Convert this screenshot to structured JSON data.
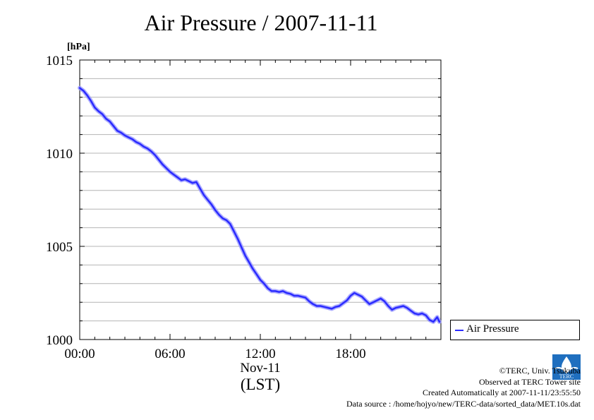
{
  "chart_data": {
    "type": "line",
    "title": "Air Pressure / 2007-11-11",
    "ylabel": "[hPa]",
    "ylim": [
      1000,
      1015
    ],
    "yticks": [
      1000,
      1005,
      1010,
      1015
    ],
    "xlim": [
      0,
      24
    ],
    "xticks": [
      {
        "value": 0,
        "label": "00:00"
      },
      {
        "value": 6,
        "label": "06:00"
      },
      {
        "value": 12,
        "label": "12:00"
      },
      {
        "value": 18,
        "label": "18:00"
      }
    ],
    "xlabel_date": "Nov-11",
    "xlabel": "(LST)",
    "grid": "horizontal, every 1 hPa",
    "legend_position": "right",
    "series": [
      {
        "name": "Air Pressure",
        "color": "#2b2bff",
        "x": [
          0.0,
          0.25,
          0.5,
          0.75,
          1.0,
          1.25,
          1.5,
          1.75,
          2.0,
          2.25,
          2.5,
          2.75,
          3.0,
          3.25,
          3.5,
          3.75,
          4.0,
          4.25,
          4.5,
          4.75,
          5.0,
          5.25,
          5.5,
          5.75,
          6.0,
          6.25,
          6.5,
          6.75,
          7.0,
          7.25,
          7.5,
          7.75,
          8.0,
          8.25,
          8.5,
          8.75,
          9.0,
          9.25,
          9.5,
          9.75,
          10.0,
          10.25,
          10.5,
          10.75,
          11.0,
          11.25,
          11.5,
          11.75,
          12.0,
          12.25,
          12.5,
          12.75,
          13.0,
          13.25,
          13.5,
          13.75,
          14.0,
          14.25,
          14.5,
          14.75,
          15.0,
          15.25,
          15.5,
          15.75,
          16.0,
          16.25,
          16.5,
          16.75,
          17.0,
          17.25,
          17.5,
          17.75,
          18.0,
          18.25,
          18.5,
          18.75,
          19.0,
          19.25,
          19.5,
          19.75,
          20.0,
          20.25,
          20.5,
          20.75,
          21.0,
          21.25,
          21.5,
          21.75,
          22.0,
          22.25,
          22.5,
          22.75,
          23.0,
          23.25,
          23.5,
          23.75,
          23.9
        ],
        "values": [
          1013.5,
          1013.35,
          1013.1,
          1012.8,
          1012.45,
          1012.25,
          1012.1,
          1011.85,
          1011.7,
          1011.45,
          1011.2,
          1011.1,
          1010.95,
          1010.85,
          1010.75,
          1010.6,
          1010.5,
          1010.35,
          1010.25,
          1010.1,
          1009.9,
          1009.65,
          1009.4,
          1009.2,
          1009.0,
          1008.85,
          1008.7,
          1008.55,
          1008.6,
          1008.5,
          1008.4,
          1008.45,
          1008.1,
          1007.75,
          1007.5,
          1007.25,
          1006.95,
          1006.7,
          1006.5,
          1006.4,
          1006.2,
          1005.8,
          1005.4,
          1004.95,
          1004.5,
          1004.15,
          1003.8,
          1003.5,
          1003.2,
          1003.0,
          1002.75,
          1002.6,
          1002.6,
          1002.55,
          1002.6,
          1002.5,
          1002.45,
          1002.35,
          1002.35,
          1002.3,
          1002.25,
          1002.05,
          1001.9,
          1001.8,
          1001.8,
          1001.75,
          1001.7,
          1001.65,
          1001.75,
          1001.8,
          1001.95,
          1002.1,
          1002.35,
          1002.5,
          1002.4,
          1002.3,
          1002.1,
          1001.9,
          1002.0,
          1002.1,
          1002.2,
          1002.05,
          1001.8,
          1001.6,
          1001.7,
          1001.75,
          1001.8,
          1001.7,
          1001.55,
          1001.4,
          1001.35,
          1001.4,
          1001.3,
          1001.05,
          1000.95,
          1001.2,
          1000.95
        ]
      }
    ]
  },
  "credits": {
    "copyright": "©TERC, Univ. Tsukuba",
    "observed": "Observed at TERC Tower site",
    "created": "Created Automatically at 2007-11-11/23:55:50",
    "source": "Data source : /home/hojyo/new/TERC-data/sorted_data/MET.10s.dat"
  },
  "logo_text": "TERC"
}
